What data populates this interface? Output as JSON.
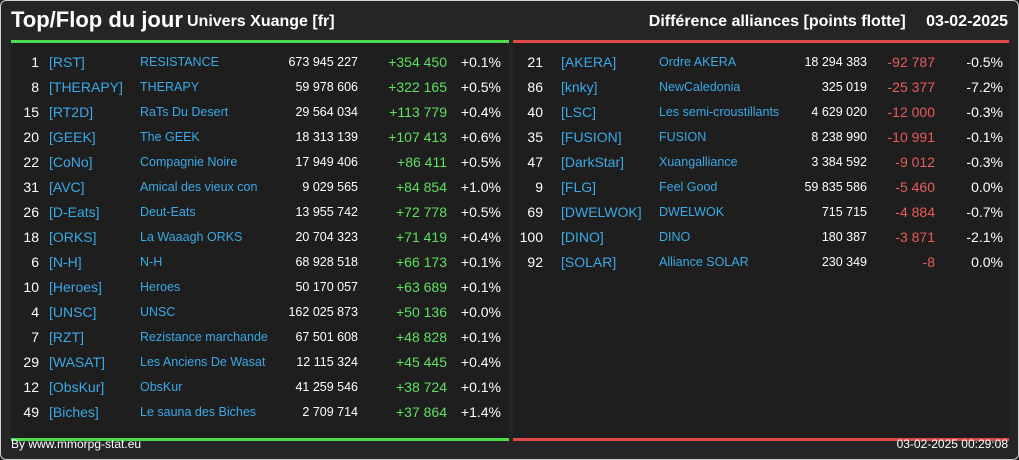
{
  "header": {
    "title": "Top/Flop du jour",
    "subtitle": "Univers Xuange [fr]",
    "right_title": "Différence alliances [points flotte]",
    "date": "03-02-2025"
  },
  "top": [
    {
      "rank": "1",
      "tag": "[RST]",
      "name": "RESISTANCE",
      "points": "673 945 227",
      "diff": "+354 450",
      "pct": "+0.1%"
    },
    {
      "rank": "8",
      "tag": "[THERAPY]",
      "name": "THERAPY",
      "points": "59 978 606",
      "diff": "+322 165",
      "pct": "+0.5%"
    },
    {
      "rank": "15",
      "tag": "[RT2D]",
      "name": "RaTs Du Desert",
      "points": "29 564 034",
      "diff": "+113 779",
      "pct": "+0.4%"
    },
    {
      "rank": "20",
      "tag": "[GEEK]",
      "name": "The GEEK",
      "points": "18 313 139",
      "diff": "+107 413",
      "pct": "+0.6%"
    },
    {
      "rank": "22",
      "tag": "[CoNo]",
      "name": "Compagnie Noire",
      "points": "17 949 406",
      "diff": "+86 411",
      "pct": "+0.5%"
    },
    {
      "rank": "31",
      "tag": "[AVC]",
      "name": "Amical des vieux con",
      "points": "9 029 565",
      "diff": "+84 854",
      "pct": "+1.0%"
    },
    {
      "rank": "26",
      "tag": "[D-Eats]",
      "name": "Deut-Eats",
      "points": "13 955 742",
      "diff": "+72 778",
      "pct": "+0.5%"
    },
    {
      "rank": "18",
      "tag": "[ORKS]",
      "name": "La Waaagh ORKS",
      "points": "20 704 323",
      "diff": "+71 419",
      "pct": "+0.4%"
    },
    {
      "rank": "6",
      "tag": "[N-H]",
      "name": "N-H",
      "points": "68 928 518",
      "diff": "+66 173",
      "pct": "+0.1%"
    },
    {
      "rank": "10",
      "tag": "[Heroes]",
      "name": "Heroes",
      "points": "50 170 057",
      "diff": "+63 689",
      "pct": "+0.1%"
    },
    {
      "rank": "4",
      "tag": "[UNSC]",
      "name": "UNSC",
      "points": "162 025 873",
      "diff": "+50 136",
      "pct": "+0.0%"
    },
    {
      "rank": "7",
      "tag": "[RZT]",
      "name": "Rezistance marchande",
      "points": "67 501 608",
      "diff": "+48 828",
      "pct": "+0.1%"
    },
    {
      "rank": "29",
      "tag": "[WASAT]",
      "name": "Les Anciens De Wasat",
      "points": "12 115 324",
      "diff": "+45 445",
      "pct": "+0.4%"
    },
    {
      "rank": "12",
      "tag": "[ObsKur]",
      "name": "ObsKur",
      "points": "41 259 546",
      "diff": "+38 724",
      "pct": "+0.1%"
    },
    {
      "rank": "49",
      "tag": "[Biches]",
      "name": "Le sauna des Biches",
      "points": "2 709 714",
      "diff": "+37 864",
      "pct": "+1.4%"
    }
  ],
  "flop": [
    {
      "rank": "21",
      "tag": "[AKERA]",
      "name": "Ordre AKERA",
      "points": "18 294 383",
      "diff": "-92 787",
      "pct": "-0.5%"
    },
    {
      "rank": "86",
      "tag": "[knky]",
      "name": "NewCaledonia",
      "points": "325 019",
      "diff": "-25 377",
      "pct": "-7.2%"
    },
    {
      "rank": "40",
      "tag": "[LSC]",
      "name": "Les semi-croustillants",
      "points": "4 629 020",
      "diff": "-12 000",
      "pct": "-0.3%"
    },
    {
      "rank": "35",
      "tag": "[FUSION]",
      "name": "FUSION",
      "points": "8 238 990",
      "diff": "-10 991",
      "pct": "-0.1%"
    },
    {
      "rank": "47",
      "tag": "[DarkStar]",
      "name": "Xuangalliance",
      "points": "3 384 592",
      "diff": "-9 012",
      "pct": "-0.3%"
    },
    {
      "rank": "9",
      "tag": "[FLG]",
      "name": "Feel Good",
      "points": "59 835 586",
      "diff": "-5 460",
      "pct": "0.0%"
    },
    {
      "rank": "69",
      "tag": "[DWELWOK]",
      "name": "DWELWOK",
      "points": "715 715",
      "diff": "-4 884",
      "pct": "-0.7%"
    },
    {
      "rank": "100",
      "tag": "[DINO]",
      "name": "DINO",
      "points": "180 387",
      "diff": "-3 871",
      "pct": "-2.1%"
    },
    {
      "rank": "92",
      "tag": "[SOLAR]",
      "name": "Alliance SOLAR",
      "points": "230 349",
      "diff": "-8",
      "pct": "0.0%"
    }
  ],
  "footer": {
    "source": "By www.mmorpg-stat.eu",
    "timestamp": "03-02-2025 00:29:08"
  },
  "colors": {
    "positive": "#5fe05f",
    "negative": "#e85c5c",
    "link": "#3ba9e6",
    "top_border": "#4ddc4d",
    "flop_border": "#e04a4a"
  }
}
